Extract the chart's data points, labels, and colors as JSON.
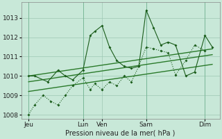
{
  "bg_color": "#c8e8d8",
  "grid_color": "#9dc8b4",
  "line_color_dark": "#1a5c1a",
  "line_color_mid": "#2a7a2a",
  "xlabel": "Pression niveau de la mer( hPa )",
  "ylim": [
    1007.8,
    1013.8
  ],
  "yticks": [
    1008,
    1009,
    1010,
    1011,
    1012,
    1013
  ],
  "xlim": [
    0,
    13.5
  ],
  "xtick_labels": [
    "Jeu",
    "Lun",
    "Ven",
    "Sam",
    "Dim"
  ],
  "xtick_pos": [
    0.5,
    4.2,
    5.5,
    8.5,
    12.5
  ],
  "vline_pos": [
    0.5,
    4.2,
    8.5,
    12.5
  ],
  "series1_x": [
    0.5,
    0.9,
    1.8,
    2.5,
    3.0,
    3.5,
    4.2,
    4.7,
    5.0,
    5.5,
    6.0,
    6.5,
    7.0,
    7.5,
    8.0,
    8.5,
    9.0,
    9.5,
    10.0,
    10.5,
    11.2,
    11.8,
    12.5,
    13.0
  ],
  "series1_y": [
    1010.0,
    1010.0,
    1009.7,
    1010.3,
    1010.0,
    1009.8,
    1010.3,
    1012.1,
    1012.3,
    1012.6,
    1011.5,
    1010.8,
    1010.5,
    1010.4,
    1010.5,
    1013.4,
    1012.5,
    1011.6,
    1011.75,
    1011.6,
    1010.0,
    1010.2,
    1012.1,
    1011.5
  ],
  "series2_x": [
    0.5,
    0.9,
    1.5,
    2.0,
    2.5,
    3.0,
    3.5,
    4.2,
    4.7,
    5.0,
    5.5,
    6.0,
    6.5,
    7.0,
    7.5,
    8.0,
    8.5,
    9.0,
    9.5,
    10.0,
    10.5,
    11.2,
    11.8,
    12.5
  ],
  "series2_y": [
    1008.0,
    1008.5,
    1009.0,
    1008.7,
    1008.5,
    1009.0,
    1009.5,
    1009.9,
    1009.3,
    1009.6,
    1009.3,
    1009.7,
    1009.5,
    1010.0,
    1009.7,
    1010.5,
    1011.5,
    1011.4,
    1011.3,
    1011.2,
    1010.05,
    1010.8,
    1011.6,
    1011.3
  ],
  "trend1_x": [
    0.5,
    13.0
  ],
  "trend1_y": [
    1010.0,
    1011.4
  ],
  "trend2_x": [
    0.5,
    13.0
  ],
  "trend2_y": [
    1009.7,
    1011.1
  ],
  "trend3_x": [
    0.5,
    13.0
  ],
  "trend3_y": [
    1009.2,
    1010.6
  ]
}
